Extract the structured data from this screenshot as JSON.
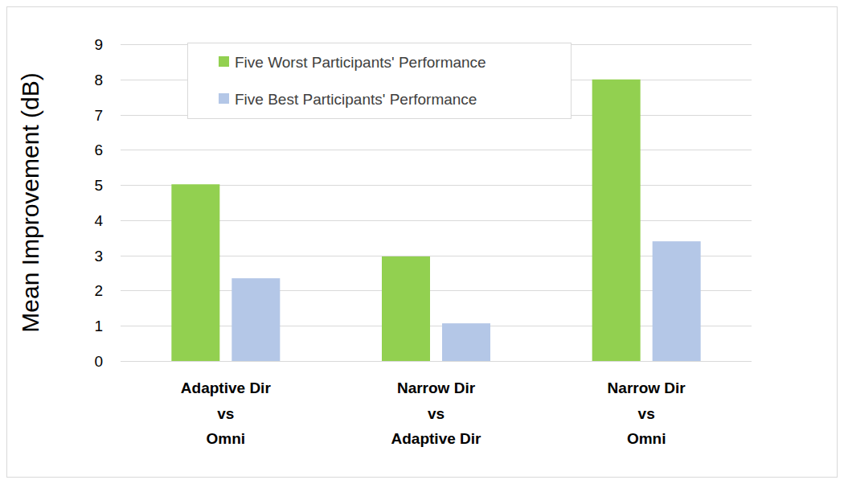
{
  "chart_data": {
    "type": "bar",
    "y_label": "Mean Improvement (dB)",
    "categories": [
      "Adaptive Dir\nvs\nOmni",
      "Narrow Dir\nvs\nAdaptive Dir",
      "Narrow Dir\nvs\nOmni"
    ],
    "series": [
      {
        "name": "Five Worst Participants' Performance",
        "color": "#92d050",
        "values": [
          5.02,
          2.97,
          8.0
        ]
      },
      {
        "name": "Five Best Participants' Performance",
        "color": "#b4c7e7",
        "values": [
          2.35,
          1.07,
          3.4
        ]
      }
    ],
    "ylim": [
      0,
      9
    ],
    "yticks": [
      0,
      1,
      2,
      3,
      4,
      5,
      6,
      7,
      8,
      9
    ],
    "grid": true,
    "legend": "top-left"
  }
}
